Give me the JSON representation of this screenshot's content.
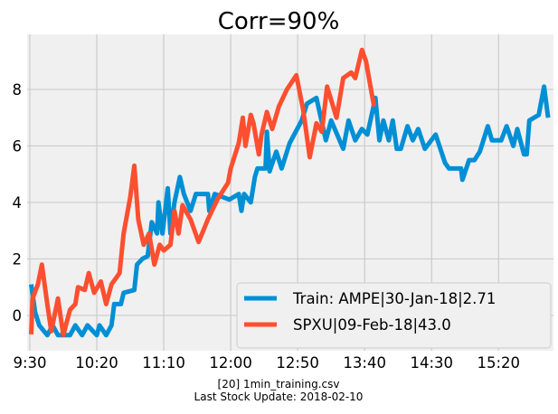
{
  "chart_data": {
    "type": "line",
    "title": "Corr=90%",
    "xlabel": "[20] 1min_training.csv",
    "caption": "Last Stock Update: 2018-02-10",
    "xlim": [
      "9:30",
      "16:01"
    ],
    "ylim": [
      -1.25,
      9.95
    ],
    "x_ticks": [
      "9:30",
      "10:20",
      "11:10",
      "12:00",
      "12:50",
      "13:40",
      "14:30",
      "15:20"
    ],
    "y_ticks": [
      0,
      2,
      4,
      6,
      8
    ],
    "grid": true,
    "legend_position": "bottom-right",
    "background": "#f0f0f0",
    "grid_color": "#cbcbcb",
    "series": [
      {
        "name": "Train: AMPE|30-Jan-18|2.71",
        "color": "#008fd5",
        "points": [
          [
            "9:31",
            1.1
          ],
          [
            "9:34",
            0.1
          ],
          [
            "9:37",
            -0.35
          ],
          [
            "9:43",
            -0.7
          ],
          [
            "9:47",
            -0.35
          ],
          [
            "9:51",
            -0.7
          ],
          [
            "10:00",
            -0.7
          ],
          [
            "10:04",
            -0.35
          ],
          [
            "10:09",
            -0.7
          ],
          [
            "10:13",
            -0.35
          ],
          [
            "10:20",
            -0.7
          ],
          [
            "10:22",
            -0.35
          ],
          [
            "10:27",
            -0.7
          ],
          [
            "10:31",
            -0.35
          ],
          [
            "10:33",
            0.4
          ],
          [
            "10:38",
            0.4
          ],
          [
            "10:40",
            0.8
          ],
          [
            "10:48",
            0.9
          ],
          [
            "10:50",
            1.8
          ],
          [
            "10:54",
            2.0
          ],
          [
            "10:58",
            2.1
          ],
          [
            "11:01",
            3.3
          ],
          [
            "11:05",
            2.9
          ],
          [
            "11:06",
            4.0
          ],
          [
            "11:09",
            2.9
          ],
          [
            "11:13",
            4.5
          ],
          [
            "11:15",
            2.9
          ],
          [
            "11:18",
            4.0
          ],
          [
            "11:22",
            4.9
          ],
          [
            "11:25",
            4.3
          ],
          [
            "11:30",
            3.7
          ],
          [
            "11:34",
            4.3
          ],
          [
            "11:43",
            4.3
          ],
          [
            "11:44",
            3.7
          ],
          [
            "11:48",
            4.3
          ],
          [
            "11:59",
            4.1
          ],
          [
            "12:06",
            4.3
          ],
          [
            "12:08",
            3.7
          ],
          [
            "12:10",
            4.3
          ],
          [
            "12:15",
            4.0
          ],
          [
            "12:18",
            4.9
          ],
          [
            "12:20",
            5.2
          ],
          [
            "12:26",
            5.2
          ],
          [
            "12:27",
            6.5
          ],
          [
            "12:29",
            5.1
          ],
          [
            "12:34",
            5.8
          ],
          [
            "12:38",
            5.2
          ],
          [
            "12:42",
            5.8
          ],
          [
            "12:44",
            6.1
          ],
          [
            "12:53",
            6.9
          ],
          [
            "12:57",
            7.5
          ],
          [
            "13:04",
            7.7
          ],
          [
            "13:11",
            6.2
          ],
          [
            "13:15",
            6.9
          ],
          [
            "13:24",
            5.9
          ],
          [
            "13:28",
            6.9
          ],
          [
            "13:33",
            6.2
          ],
          [
            "13:38",
            6.6
          ],
          [
            "13:42",
            6.4
          ],
          [
            "13:48",
            7.7
          ],
          [
            "13:51",
            6.2
          ],
          [
            "13:54",
            6.9
          ],
          [
            "13:58",
            6.2
          ],
          [
            "14:01",
            6.9
          ],
          [
            "14:04",
            5.9
          ],
          [
            "14:07",
            5.9
          ],
          [
            "14:12",
            6.7
          ],
          [
            "14:16",
            6.2
          ],
          [
            "14:20",
            6.6
          ],
          [
            "14:25",
            5.9
          ],
          [
            "14:33",
            6.4
          ],
          [
            "14:40",
            5.4
          ],
          [
            "14:43",
            5.2
          ],
          [
            "14:52",
            5.2
          ],
          [
            "14:53",
            4.8
          ],
          [
            "14:58",
            5.5
          ],
          [
            "15:02",
            5.5
          ],
          [
            "15:06",
            5.8
          ],
          [
            "15:12",
            6.7
          ],
          [
            "15:15",
            6.2
          ],
          [
            "15:22",
            6.2
          ],
          [
            "15:26",
            6.7
          ],
          [
            "15:31",
            6.0
          ],
          [
            "15:34",
            6.6
          ],
          [
            "15:39",
            5.7
          ],
          [
            "15:41",
            5.7
          ],
          [
            "15:43",
            6.9
          ],
          [
            "15:50",
            7.1
          ],
          [
            "15:54",
            8.1
          ],
          [
            "15:57",
            7.0
          ]
        ]
      },
      {
        "name": "SPXU|09-Feb-18|43.0",
        "color": "#fc4f30",
        "points": [
          [
            "9:31",
            -0.67
          ],
          [
            "9:32",
            0.6
          ],
          [
            "9:36",
            1.1
          ],
          [
            "9:39",
            1.8
          ],
          [
            "9:43",
            0.4
          ],
          [
            "9:46",
            -0.56
          ],
          [
            "9:51",
            0.6
          ],
          [
            "9:55",
            -0.7
          ],
          [
            "10:00",
            0.2
          ],
          [
            "10:04",
            0.4
          ],
          [
            "10:06",
            1.0
          ],
          [
            "10:11",
            0.9
          ],
          [
            "10:14",
            1.5
          ],
          [
            "10:18",
            0.8
          ],
          [
            "10:23",
            1.2
          ],
          [
            "10:27",
            0.4
          ],
          [
            "10:31",
            1.1
          ],
          [
            "10:37",
            1.5
          ],
          [
            "10:40",
            2.9
          ],
          [
            "10:45",
            4.2
          ],
          [
            "10:48",
            5.3
          ],
          [
            "10:51",
            3.4
          ],
          [
            "10:55",
            2.5
          ],
          [
            "10:59",
            2.9
          ],
          [
            "11:03",
            1.8
          ],
          [
            "11:07",
            2.5
          ],
          [
            "11:10",
            2.3
          ],
          [
            "11:15",
            2.5
          ],
          [
            "11:18",
            3.7
          ],
          [
            "11:21",
            2.9
          ],
          [
            "11:24",
            3.9
          ],
          [
            "11:30",
            3.4
          ],
          [
            "11:36",
            2.6
          ],
          [
            "11:43",
            3.4
          ],
          [
            "11:50",
            4.1
          ],
          [
            "11:58",
            4.7
          ],
          [
            "12:00",
            5.2
          ],
          [
            "12:06",
            6.1
          ],
          [
            "12:09",
            7.0
          ],
          [
            "12:11",
            6.0
          ],
          [
            "12:15",
            7.1
          ],
          [
            "12:17",
            6.8
          ],
          [
            "12:21",
            5.7
          ],
          [
            "12:23",
            6.4
          ],
          [
            "12:27",
            7.2
          ],
          [
            "12:31",
            6.6
          ],
          [
            "12:36",
            7.4
          ],
          [
            "12:42",
            8.0
          ],
          [
            "12:49",
            8.5
          ],
          [
            "12:54",
            7.3
          ],
          [
            "12:59",
            5.6
          ],
          [
            "13:04",
            6.8
          ],
          [
            "13:08",
            6.5
          ],
          [
            "13:12",
            8.1
          ],
          [
            "13:19",
            7.0
          ],
          [
            "13:24",
            8.4
          ],
          [
            "13:30",
            8.6
          ],
          [
            "13:33",
            8.4
          ],
          [
            "13:38",
            9.4
          ],
          [
            "13:41",
            9.0
          ],
          [
            "13:44",
            8.2
          ],
          [
            "13:47",
            7.4
          ]
        ]
      }
    ]
  }
}
